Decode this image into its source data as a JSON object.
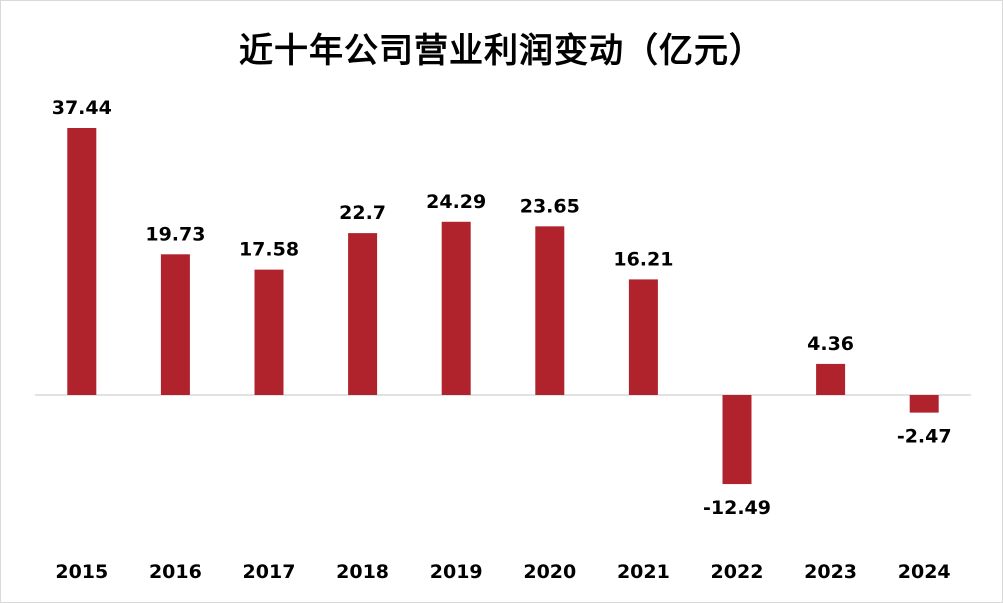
{
  "chart_data": {
    "type": "bar",
    "title": "近十年公司营业利润变动（亿元）",
    "xlabel": "",
    "ylabel": "",
    "categories": [
      "2015",
      "2016",
      "2017",
      "2018",
      "2019",
      "2020",
      "2021",
      "2022",
      "2023",
      "2024"
    ],
    "values": [
      37.44,
      19.73,
      17.58,
      22.7,
      24.29,
      23.65,
      16.21,
      -12.49,
      4.36,
      -2.47
    ],
    "data_labels": [
      "37.44",
      "19.73",
      "17.58",
      "22.7",
      "24.29",
      "23.65",
      "16.21",
      "-12.49",
      "4.36",
      "-2.47"
    ],
    "bar_color": "#B0232D",
    "axis_color": "#d9d9d9",
    "grid": false,
    "legend": "none"
  }
}
